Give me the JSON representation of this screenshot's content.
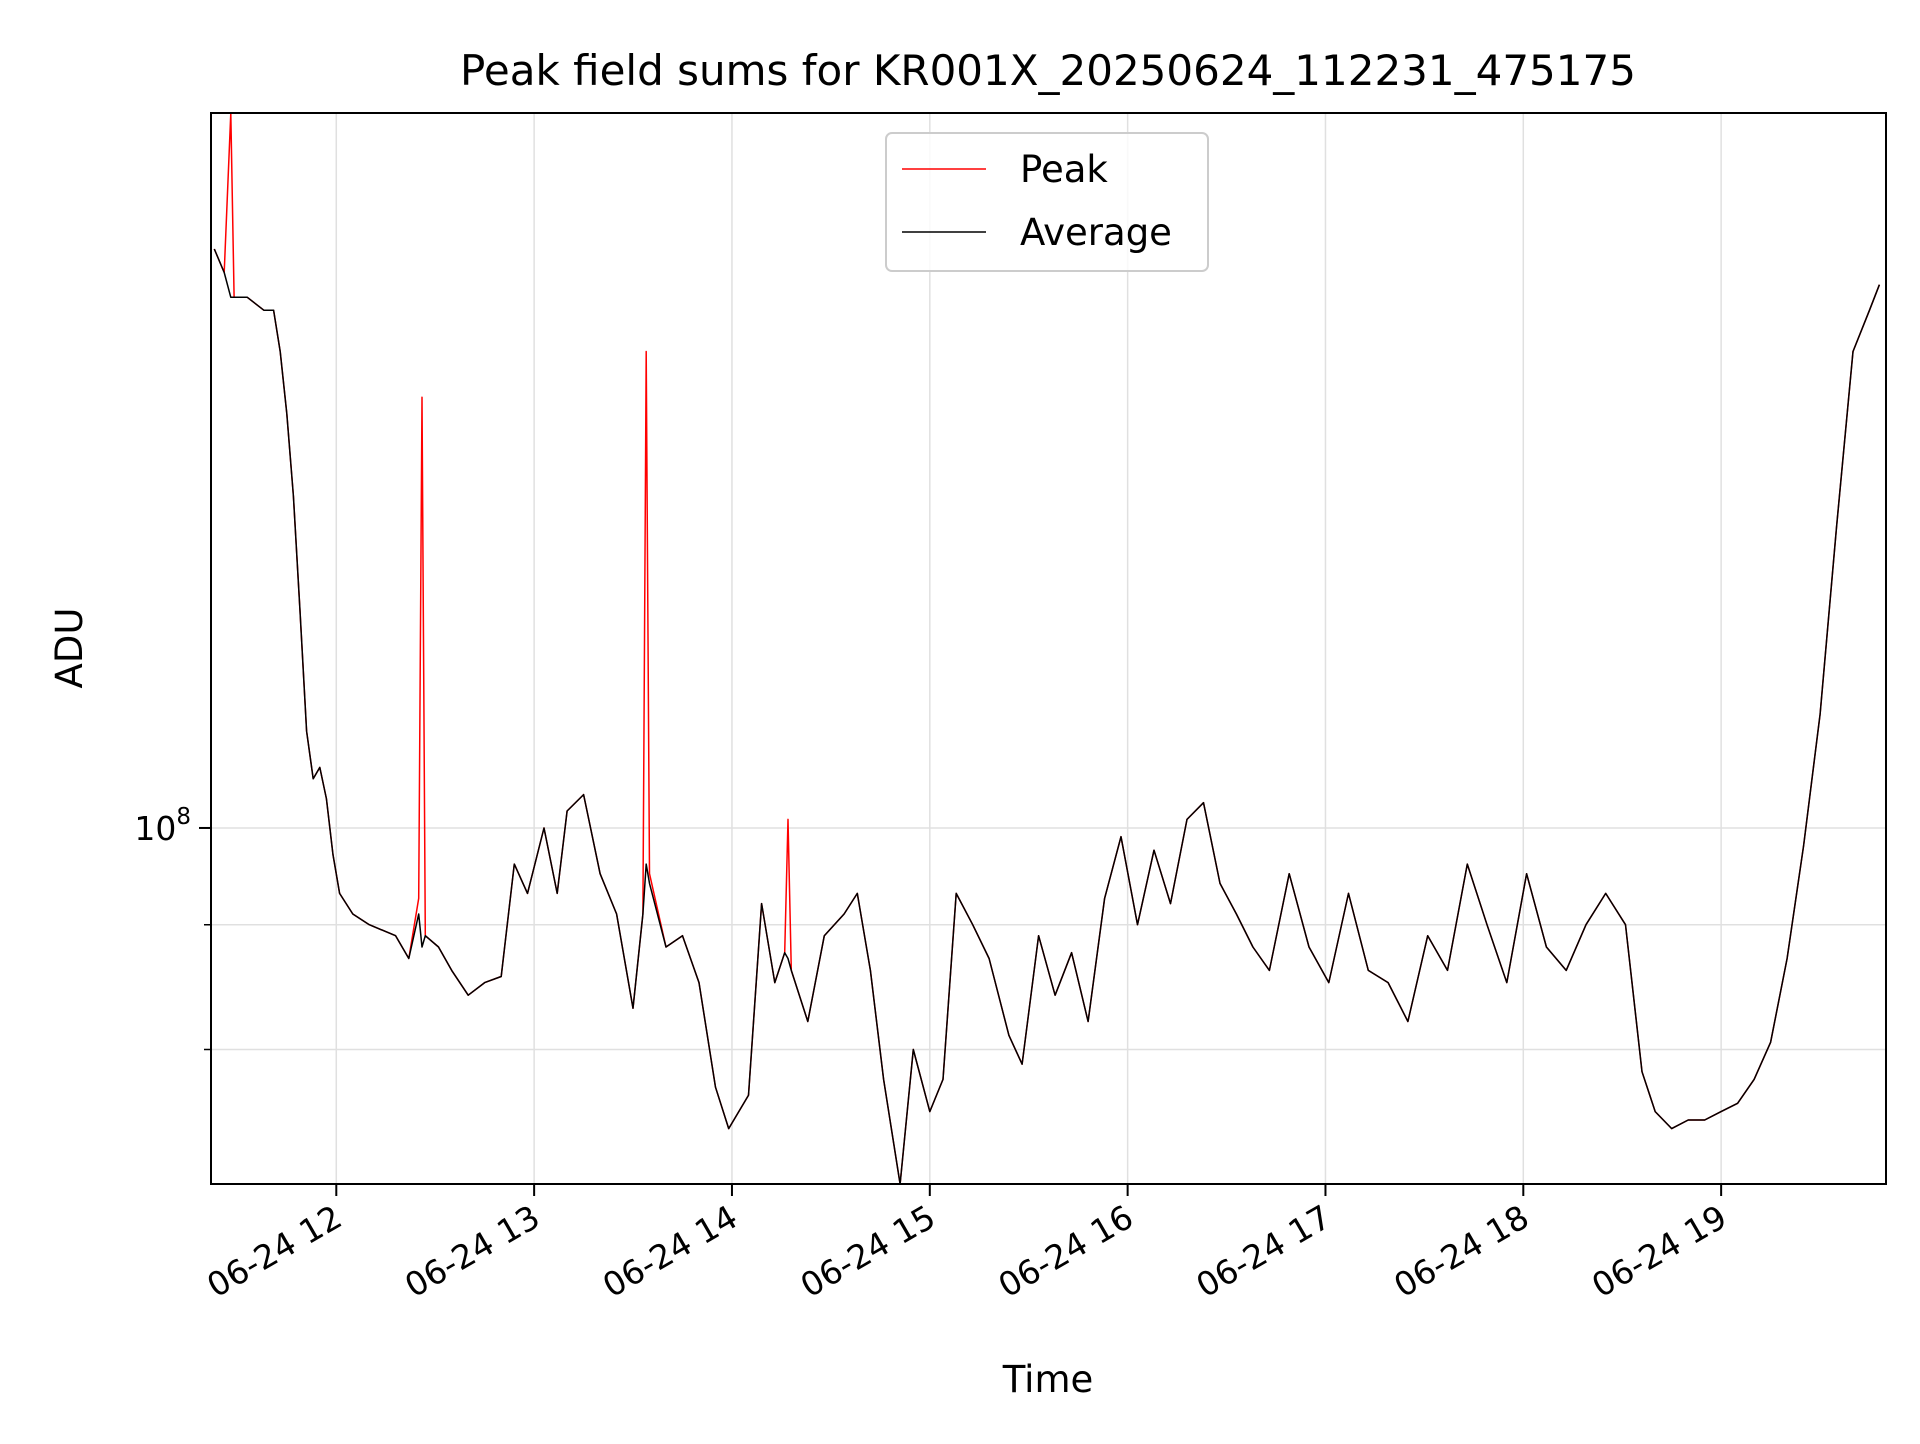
{
  "chart_data": {
    "type": "line",
    "title": "Peak field sums for KR001X_20250624_112231_475175",
    "xlabel": "Time",
    "ylabel": "ADU",
    "y_scale": "log",
    "y_tick_labels": [
      {
        "value": 100000000,
        "base": "10",
        "exponent": "8"
      }
    ],
    "x_tick_labels": [
      "06-24 12",
      "06-24 13",
      "06-24 14",
      "06-24 15",
      "06-24 16",
      "06-24 17",
      "06-24 18",
      "06-24 19"
    ],
    "x_tick_times": [
      "2025-06-24T12:00",
      "2025-06-24T13:00",
      "2025-06-24T14:00",
      "2025-06-24T15:00",
      "2025-06-24T16:00",
      "2025-06-24T17:00",
      "2025-06-24T18:00",
      "2025-06-24T19:00"
    ],
    "xlim": [
      "2025-06-24T11:22",
      "2025-06-24T19:50"
    ],
    "ylim": [
      44000000,
      520000000
    ],
    "minor_y_ticks": [
      60000000,
      80000000
    ],
    "grid": true,
    "legend_position": "upper center",
    "colors": {
      "peak": "#ff0000",
      "average": "#000000",
      "grid": "#e0e0e0"
    },
    "series": [
      {
        "name": "Peak",
        "color": "#ff0000",
        "points": [
          [
            "2025-06-24T11:23",
            380000000
          ],
          [
            "2025-06-24T11:26",
            360000000
          ],
          [
            "2025-06-24T11:28",
            520000000
          ],
          [
            "2025-06-24T11:29",
            340000000
          ],
          [
            "2025-06-24T11:33",
            340000000
          ],
          [
            "2025-06-24T11:38",
            330000000
          ],
          [
            "2025-06-24T11:41",
            330000000
          ],
          [
            "2025-06-24T11:43",
            300000000
          ],
          [
            "2025-06-24T11:45",
            260000000
          ],
          [
            "2025-06-24T11:47",
            215000000
          ],
          [
            "2025-06-24T11:49",
            165000000
          ],
          [
            "2025-06-24T11:51",
            125000000
          ],
          [
            "2025-06-24T11:53",
            112000000
          ],
          [
            "2025-06-24T11:55",
            115000000
          ],
          [
            "2025-06-24T11:57",
            107000000
          ],
          [
            "2025-06-24T11:59",
            94000000
          ],
          [
            "2025-06-24T12:01",
            86000000
          ],
          [
            "2025-06-24T12:05",
            82000000
          ],
          [
            "2025-06-24T12:10",
            80000000
          ],
          [
            "2025-06-24T12:18",
            78000000
          ],
          [
            "2025-06-24T12:22",
            74000000
          ],
          [
            "2025-06-24T12:25",
            85000000
          ],
          [
            "2025-06-24T12:26",
            270000000
          ],
          [
            "2025-06-24T12:27",
            78000000
          ],
          [
            "2025-06-24T12:31",
            76000000
          ],
          [
            "2025-06-24T12:35",
            72000000
          ],
          [
            "2025-06-24T12:40",
            68000000
          ],
          [
            "2025-06-24T12:45",
            70000000
          ],
          [
            "2025-06-24T12:50",
            71000000
          ],
          [
            "2025-06-24T12:54",
            92000000
          ],
          [
            "2025-06-24T12:58",
            86000000
          ],
          [
            "2025-06-24T13:03",
            100000000
          ],
          [
            "2025-06-24T13:07",
            86000000
          ],
          [
            "2025-06-24T13:10",
            104000000
          ],
          [
            "2025-06-24T13:15",
            108000000
          ],
          [
            "2025-06-24T13:20",
            90000000
          ],
          [
            "2025-06-24T13:25",
            82000000
          ],
          [
            "2025-06-24T13:30",
            66000000
          ],
          [
            "2025-06-24T13:33",
            82000000
          ],
          [
            "2025-06-24T13:34",
            300000000
          ],
          [
            "2025-06-24T13:35",
            90000000
          ],
          [
            "2025-06-24T13:40",
            76000000
          ],
          [
            "2025-06-24T13:45",
            78000000
          ],
          [
            "2025-06-24T13:50",
            70000000
          ],
          [
            "2025-06-24T13:55",
            55000000
          ],
          [
            "2025-06-24T13:59",
            50000000
          ],
          [
            "2025-06-24T14:05",
            54000000
          ],
          [
            "2025-06-24T14:09",
            84000000
          ],
          [
            "2025-06-24T14:13",
            70000000
          ],
          [
            "2025-06-24T14:16",
            75000000
          ],
          [
            "2025-06-24T14:17",
            102000000
          ],
          [
            "2025-06-24T14:18",
            72000000
          ],
          [
            "2025-06-24T14:23",
            64000000
          ],
          [
            "2025-06-24T14:28",
            78000000
          ],
          [
            "2025-06-24T14:34",
            82000000
          ],
          [
            "2025-06-24T14:38",
            86000000
          ],
          [
            "2025-06-24T14:42",
            72000000
          ],
          [
            "2025-06-24T14:46",
            56000000
          ],
          [
            "2025-06-24T14:51",
            44000000
          ],
          [
            "2025-06-24T14:55",
            60000000
          ],
          [
            "2025-06-24T15:00",
            52000000
          ],
          [
            "2025-06-24T15:04",
            56000000
          ],
          [
            "2025-06-24T15:08",
            86000000
          ],
          [
            "2025-06-24T15:13",
            80000000
          ],
          [
            "2025-06-24T15:18",
            74000000
          ],
          [
            "2025-06-24T15:24",
            62000000
          ],
          [
            "2025-06-24T15:28",
            58000000
          ],
          [
            "2025-06-24T15:33",
            78000000
          ],
          [
            "2025-06-24T15:38",
            68000000
          ],
          [
            "2025-06-24T15:43",
            75000000
          ],
          [
            "2025-06-24T15:48",
            64000000
          ],
          [
            "2025-06-24T15:53",
            85000000
          ],
          [
            "2025-06-24T15:58",
            98000000
          ],
          [
            "2025-06-24T16:03",
            80000000
          ],
          [
            "2025-06-24T16:08",
            95000000
          ],
          [
            "2025-06-24T16:13",
            84000000
          ],
          [
            "2025-06-24T16:18",
            102000000
          ],
          [
            "2025-06-24T16:23",
            106000000
          ],
          [
            "2025-06-24T16:28",
            88000000
          ],
          [
            "2025-06-24T16:33",
            82000000
          ],
          [
            "2025-06-24T16:38",
            76000000
          ],
          [
            "2025-06-24T16:43",
            72000000
          ],
          [
            "2025-06-24T16:49",
            90000000
          ],
          [
            "2025-06-24T16:55",
            76000000
          ],
          [
            "2025-06-24T17:01",
            70000000
          ],
          [
            "2025-06-24T17:07",
            86000000
          ],
          [
            "2025-06-24T17:13",
            72000000
          ],
          [
            "2025-06-24T17:19",
            70000000
          ],
          [
            "2025-06-24T17:25",
            64000000
          ],
          [
            "2025-06-24T17:31",
            78000000
          ],
          [
            "2025-06-24T17:37",
            72000000
          ],
          [
            "2025-06-24T17:43",
            92000000
          ],
          [
            "2025-06-24T17:49",
            80000000
          ],
          [
            "2025-06-24T17:55",
            70000000
          ],
          [
            "2025-06-24T18:01",
            90000000
          ],
          [
            "2025-06-24T18:07",
            76000000
          ],
          [
            "2025-06-24T18:13",
            72000000
          ],
          [
            "2025-06-24T18:19",
            80000000
          ],
          [
            "2025-06-24T18:25",
            86000000
          ],
          [
            "2025-06-24T18:31",
            80000000
          ],
          [
            "2025-06-24T18:36",
            57000000
          ],
          [
            "2025-06-24T18:40",
            52000000
          ],
          [
            "2025-06-24T18:45",
            50000000
          ],
          [
            "2025-06-24T18:50",
            51000000
          ],
          [
            "2025-06-24T18:55",
            51000000
          ],
          [
            "2025-06-24T19:00",
            52000000
          ],
          [
            "2025-06-24T19:05",
            53000000
          ],
          [
            "2025-06-24T19:10",
            56000000
          ],
          [
            "2025-06-24T19:15",
            61000000
          ],
          [
            "2025-06-24T19:20",
            74000000
          ],
          [
            "2025-06-24T19:25",
            96000000
          ],
          [
            "2025-06-24T19:30",
            130000000
          ],
          [
            "2025-06-24T19:35",
            200000000
          ],
          [
            "2025-06-24T19:40",
            300000000
          ],
          [
            "2025-06-24T19:45",
            330000000
          ],
          [
            "2025-06-24T19:48",
            350000000
          ]
        ]
      },
      {
        "name": "Average",
        "color": "#000000",
        "points": [
          [
            "2025-06-24T11:23",
            380000000
          ],
          [
            "2025-06-24T11:26",
            360000000
          ],
          [
            "2025-06-24T11:28",
            340000000
          ],
          [
            "2025-06-24T11:29",
            340000000
          ],
          [
            "2025-06-24T11:33",
            340000000
          ],
          [
            "2025-06-24T11:38",
            330000000
          ],
          [
            "2025-06-24T11:41",
            330000000
          ],
          [
            "2025-06-24T11:43",
            300000000
          ],
          [
            "2025-06-24T11:45",
            260000000
          ],
          [
            "2025-06-24T11:47",
            215000000
          ],
          [
            "2025-06-24T11:49",
            165000000
          ],
          [
            "2025-06-24T11:51",
            125000000
          ],
          [
            "2025-06-24T11:53",
            112000000
          ],
          [
            "2025-06-24T11:55",
            115000000
          ],
          [
            "2025-06-24T11:57",
            107000000
          ],
          [
            "2025-06-24T11:59",
            94000000
          ],
          [
            "2025-06-24T12:01",
            86000000
          ],
          [
            "2025-06-24T12:05",
            82000000
          ],
          [
            "2025-06-24T12:10",
            80000000
          ],
          [
            "2025-06-24T12:18",
            78000000
          ],
          [
            "2025-06-24T12:22",
            74000000
          ],
          [
            "2025-06-24T12:25",
            82000000
          ],
          [
            "2025-06-24T12:26",
            76000000
          ],
          [
            "2025-06-24T12:27",
            78000000
          ],
          [
            "2025-06-24T12:31",
            76000000
          ],
          [
            "2025-06-24T12:35",
            72000000
          ],
          [
            "2025-06-24T12:40",
            68000000
          ],
          [
            "2025-06-24T12:45",
            70000000
          ],
          [
            "2025-06-24T12:50",
            71000000
          ],
          [
            "2025-06-24T12:54",
            92000000
          ],
          [
            "2025-06-24T12:58",
            86000000
          ],
          [
            "2025-06-24T13:03",
            100000000
          ],
          [
            "2025-06-24T13:07",
            86000000
          ],
          [
            "2025-06-24T13:10",
            104000000
          ],
          [
            "2025-06-24T13:15",
            108000000
          ],
          [
            "2025-06-24T13:20",
            90000000
          ],
          [
            "2025-06-24T13:25",
            82000000
          ],
          [
            "2025-06-24T13:30",
            66000000
          ],
          [
            "2025-06-24T13:33",
            82000000
          ],
          [
            "2025-06-24T13:34",
            92000000
          ],
          [
            "2025-06-24T13:35",
            88000000
          ],
          [
            "2025-06-24T13:40",
            76000000
          ],
          [
            "2025-06-24T13:45",
            78000000
          ],
          [
            "2025-06-24T13:50",
            70000000
          ],
          [
            "2025-06-24T13:55",
            55000000
          ],
          [
            "2025-06-24T13:59",
            50000000
          ],
          [
            "2025-06-24T14:05",
            54000000
          ],
          [
            "2025-06-24T14:09",
            84000000
          ],
          [
            "2025-06-24T14:13",
            70000000
          ],
          [
            "2025-06-24T14:16",
            75000000
          ],
          [
            "2025-06-24T14:17",
            74000000
          ],
          [
            "2025-06-24T14:18",
            72000000
          ],
          [
            "2025-06-24T14:23",
            64000000
          ],
          [
            "2025-06-24T14:28",
            78000000
          ],
          [
            "2025-06-24T14:34",
            82000000
          ],
          [
            "2025-06-24T14:38",
            86000000
          ],
          [
            "2025-06-24T14:42",
            72000000
          ],
          [
            "2025-06-24T14:46",
            56000000
          ],
          [
            "2025-06-24T14:51",
            44000000
          ],
          [
            "2025-06-24T14:55",
            60000000
          ],
          [
            "2025-06-24T15:00",
            52000000
          ],
          [
            "2025-06-24T15:04",
            56000000
          ],
          [
            "2025-06-24T15:08",
            86000000
          ],
          [
            "2025-06-24T15:13",
            80000000
          ],
          [
            "2025-06-24T15:18",
            74000000
          ],
          [
            "2025-06-24T15:24",
            62000000
          ],
          [
            "2025-06-24T15:28",
            58000000
          ],
          [
            "2025-06-24T15:33",
            78000000
          ],
          [
            "2025-06-24T15:38",
            68000000
          ],
          [
            "2025-06-24T15:43",
            75000000
          ],
          [
            "2025-06-24T15:48",
            64000000
          ],
          [
            "2025-06-24T15:53",
            85000000
          ],
          [
            "2025-06-24T15:58",
            98000000
          ],
          [
            "2025-06-24T16:03",
            80000000
          ],
          [
            "2025-06-24T16:08",
            95000000
          ],
          [
            "2025-06-24T16:13",
            84000000
          ],
          [
            "2025-06-24T16:18",
            102000000
          ],
          [
            "2025-06-24T16:23",
            106000000
          ],
          [
            "2025-06-24T16:28",
            88000000
          ],
          [
            "2025-06-24T16:33",
            82000000
          ],
          [
            "2025-06-24T16:38",
            76000000
          ],
          [
            "2025-06-24T16:43",
            72000000
          ],
          [
            "2025-06-24T16:49",
            90000000
          ],
          [
            "2025-06-24T16:55",
            76000000
          ],
          [
            "2025-06-24T17:01",
            70000000
          ],
          [
            "2025-06-24T17:07",
            86000000
          ],
          [
            "2025-06-24T17:13",
            72000000
          ],
          [
            "2025-06-24T17:19",
            70000000
          ],
          [
            "2025-06-24T17:25",
            64000000
          ],
          [
            "2025-06-24T17:31",
            78000000
          ],
          [
            "2025-06-24T17:37",
            72000000
          ],
          [
            "2025-06-24T17:43",
            92000000
          ],
          [
            "2025-06-24T17:49",
            80000000
          ],
          [
            "2025-06-24T17:55",
            70000000
          ],
          [
            "2025-06-24T18:01",
            90000000
          ],
          [
            "2025-06-24T18:07",
            76000000
          ],
          [
            "2025-06-24T18:13",
            72000000
          ],
          [
            "2025-06-24T18:19",
            80000000
          ],
          [
            "2025-06-24T18:25",
            86000000
          ],
          [
            "2025-06-24T18:31",
            80000000
          ],
          [
            "2025-06-24T18:36",
            57000000
          ],
          [
            "2025-06-24T18:40",
            52000000
          ],
          [
            "2025-06-24T18:45",
            50000000
          ],
          [
            "2025-06-24T18:50",
            51000000
          ],
          [
            "2025-06-24T18:55",
            51000000
          ],
          [
            "2025-06-24T19:00",
            52000000
          ],
          [
            "2025-06-24T19:05",
            53000000
          ],
          [
            "2025-06-24T19:10",
            56000000
          ],
          [
            "2025-06-24T19:15",
            61000000
          ],
          [
            "2025-06-24T19:20",
            74000000
          ],
          [
            "2025-06-24T19:25",
            96000000
          ],
          [
            "2025-06-24T19:30",
            130000000
          ],
          [
            "2025-06-24T19:35",
            200000000
          ],
          [
            "2025-06-24T19:40",
            300000000
          ],
          [
            "2025-06-24T19:45",
            330000000
          ],
          [
            "2025-06-24T19:48",
            350000000
          ]
        ]
      }
    ]
  }
}
